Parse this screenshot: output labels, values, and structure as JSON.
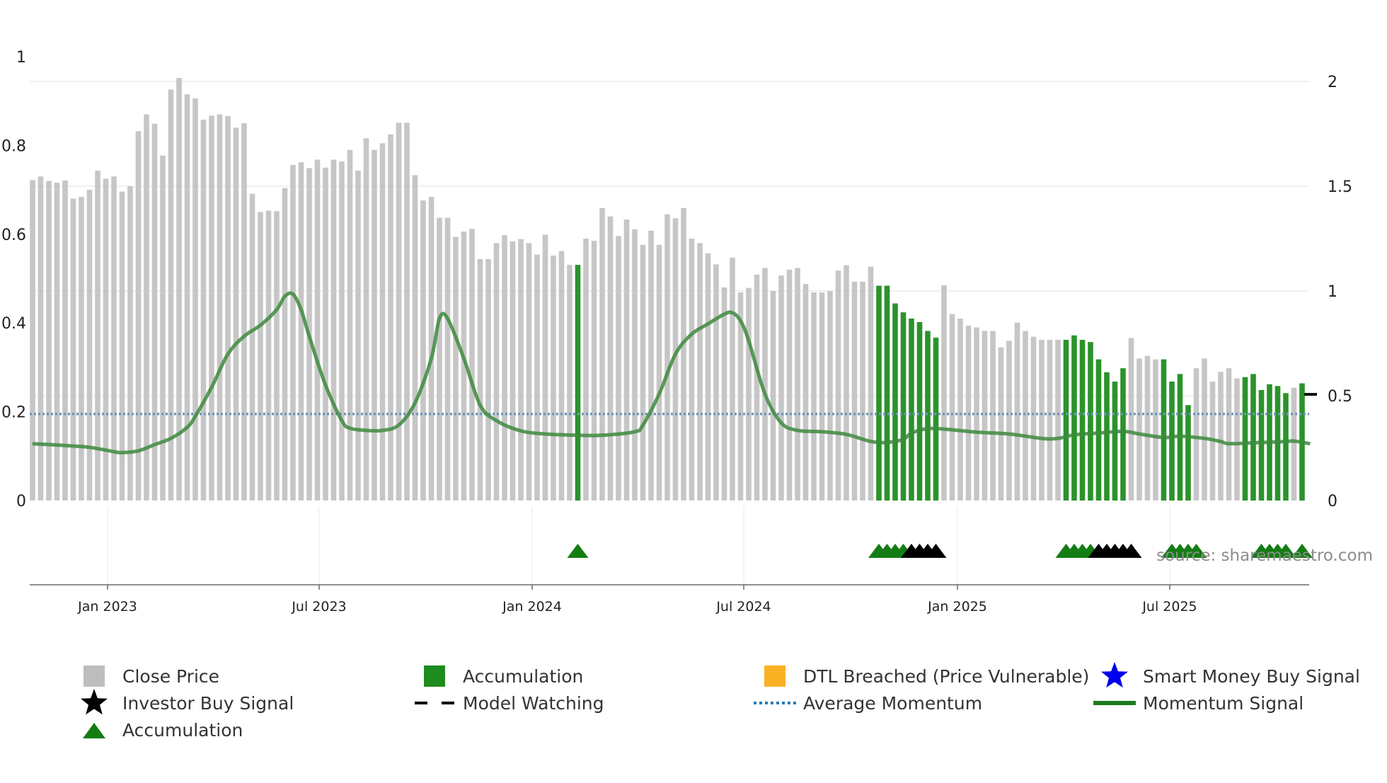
{
  "chart_data": {
    "type": "bar",
    "source_text": "source: sharemaestro.com",
    "left_axis": {
      "range": [
        0,
        1
      ],
      "ticks": [
        "0",
        "0.2",
        "0.4",
        "0.6",
        "0.8",
        "1"
      ]
    },
    "right_axis": {
      "range": [
        0,
        2.25
      ],
      "ticks": [
        "0",
        "0.5",
        "1",
        "1.5",
        "2"
      ]
    },
    "x_ticks": [
      "Jan 2023",
      "Jul 2023",
      "Jan 2024",
      "Jul 2024",
      "Jan 2025",
      "Jul 2025"
    ],
    "average_momentum": 0.195,
    "close_prices": [
      0.722,
      0.73,
      0.72,
      0.716,
      0.721,
      0.68,
      0.684,
      0.7,
      0.743,
      0.725,
      0.73,
      0.696,
      0.708,
      0.832,
      0.87,
      0.849,
      0.777,
      0.926,
      0.952,
      0.915,
      0.906,
      0.858,
      0.867,
      0.87,
      0.866,
      0.84,
      0.85,
      0.691,
      0.65,
      0.653,
      0.652,
      0.704,
      0.756,
      0.762,
      0.749,
      0.768,
      0.75,
      0.768,
      0.764,
      0.79,
      0.743,
      0.816,
      0.79,
      0.805,
      0.825,
      0.851,
      0.851,
      0.733,
      0.676,
      0.684,
      0.637,
      0.637,
      0.594,
      0.606,
      0.612,
      0.544,
      0.544,
      0.58,
      0.598,
      0.584,
      0.589,
      0.58,
      0.554,
      0.599,
      0.552,
      0.562,
      0.531,
      0.531,
      0.59,
      0.585,
      0.659,
      0.64,
      0.596,
      0.633,
      0.611,
      0.576,
      0.608,
      0.576,
      0.645,
      0.636,
      0.659,
      0.59,
      0.58,
      0.557,
      0.532,
      0.48,
      0.547,
      0.469,
      0.479,
      0.509,
      0.524,
      0.472,
      0.507,
      0.52,
      0.524,
      0.488,
      0.469,
      0.469,
      0.472,
      0.518,
      0.53,
      0.493,
      0.493,
      0.527,
      0.484,
      0.484,
      0.444,
      0.424,
      0.41,
      0.402,
      0.382,
      0.367,
      0.485,
      0.42,
      0.41,
      0.394,
      0.39,
      0.382,
      0.382,
      0.345,
      0.36,
      0.401,
      0.382,
      0.369,
      0.362,
      0.362,
      0.362,
      0.362,
      0.372,
      0.362,
      0.357,
      0.318,
      0.289,
      0.268,
      0.298,
      0.366,
      0.32,
      0.326,
      0.318,
      0.318,
      0.268,
      0.285,
      0.215,
      0.298,
      0.32,
      0.268,
      0.29,
      0.298,
      0.275,
      0.278,
      0.285,
      0.249,
      0.262,
      0.258,
      0.242,
      0.254,
      0.264
    ],
    "accumulation_bar_ranges": [
      [
        67,
        67
      ],
      [
        104,
        111
      ],
      [
        127,
        134
      ],
      [
        139,
        142
      ],
      [
        149,
        154
      ],
      [
        156,
        156
      ]
    ],
    "momentum_signal": [
      [
        0,
        0.128
      ],
      [
        4,
        0.124
      ],
      [
        7,
        0.12
      ],
      [
        10,
        0.11
      ],
      [
        11,
        0.108
      ],
      [
        13,
        0.112
      ],
      [
        15,
        0.126
      ],
      [
        17,
        0.14
      ],
      [
        19,
        0.165
      ],
      [
        20,
        0.19
      ],
      [
        22,
        0.255
      ],
      [
        24,
        0.33
      ],
      [
        26,
        0.37
      ],
      [
        28,
        0.395
      ],
      [
        30,
        0.43
      ],
      [
        31,
        0.46
      ],
      [
        32,
        0.465
      ],
      [
        33,
        0.43
      ],
      [
        34,
        0.37
      ],
      [
        36,
        0.26
      ],
      [
        38,
        0.18
      ],
      [
        39,
        0.163
      ],
      [
        41,
        0.158
      ],
      [
        43,
        0.158
      ],
      [
        45,
        0.17
      ],
      [
        47,
        0.22
      ],
      [
        49,
        0.32
      ],
      [
        50,
        0.41
      ],
      [
        51,
        0.41
      ],
      [
        53,
        0.32
      ],
      [
        55,
        0.215
      ],
      [
        57,
        0.18
      ],
      [
        60,
        0.157
      ],
      [
        63,
        0.15
      ],
      [
        67,
        0.147
      ],
      [
        70,
        0.147
      ],
      [
        74,
        0.155
      ],
      [
        75,
        0.17
      ],
      [
        77,
        0.24
      ],
      [
        79,
        0.33
      ],
      [
        81,
        0.375
      ],
      [
        83,
        0.398
      ],
      [
        85,
        0.42
      ],
      [
        86,
        0.423
      ],
      [
        87,
        0.405
      ],
      [
        88,
        0.36
      ],
      [
        90,
        0.24
      ],
      [
        92,
        0.175
      ],
      [
        94,
        0.158
      ],
      [
        97,
        0.155
      ],
      [
        100,
        0.149
      ],
      [
        103,
        0.133
      ],
      [
        105,
        0.131
      ],
      [
        107,
        0.138
      ],
      [
        108,
        0.152
      ],
      [
        110,
        0.162
      ],
      [
        112,
        0.161
      ],
      [
        116,
        0.154
      ],
      [
        120,
        0.15
      ],
      [
        124,
        0.14
      ],
      [
        126,
        0.14
      ],
      [
        128,
        0.148
      ],
      [
        131,
        0.152
      ],
      [
        134,
        0.156
      ],
      [
        136,
        0.15
      ],
      [
        139,
        0.142
      ],
      [
        141,
        0.145
      ],
      [
        144,
        0.14
      ],
      [
        146,
        0.133
      ],
      [
        147,
        0.128
      ],
      [
        150,
        0.13
      ],
      [
        154,
        0.133
      ],
      [
        155,
        0.134
      ],
      [
        157,
        0.128
      ]
    ],
    "markers": {
      "accumulation": [
        67,
        104,
        105,
        106,
        107,
        127,
        128,
        129,
        130,
        140,
        141,
        142,
        143,
        151,
        152,
        153,
        154,
        156
      ],
      "investor_buy": [
        108,
        109,
        110,
        111,
        131,
        132,
        133,
        134,
        135
      ]
    },
    "legend": [
      {
        "label": "Close Price",
        "symbol": "square",
        "color": "#bdbdbd"
      },
      {
        "label": "Accumulation",
        "symbol": "square",
        "color": "#1e8c1e"
      },
      {
        "label": "DTL Breached (Price Vulnerable)",
        "symbol": "square",
        "color": "#fbb124"
      },
      {
        "label": "Smart Money Buy Signal",
        "symbol": "star",
        "color": "#0000ee"
      },
      {
        "label": "Investor Buy Signal",
        "symbol": "star",
        "color": "#000000"
      },
      {
        "label": "Model Watching",
        "symbol": "dash",
        "color": "#000000"
      },
      {
        "label": "Average Momentum",
        "symbol": "dots",
        "color": "#2a7ab5"
      },
      {
        "label": "Momentum Signal",
        "symbol": "line",
        "color": "#1e7a1e"
      },
      {
        "label": "Accumulation",
        "symbol": "triangle",
        "color": "#137d13"
      }
    ],
    "colors": {
      "close_bar": "#c6c6c6",
      "accumulation_bar": "#2b932b",
      "momentum_line": "#3d8a3d",
      "average_line": "#6f97b8",
      "accumulation_marker": "#137d13",
      "investor_marker": "#000000"
    }
  }
}
